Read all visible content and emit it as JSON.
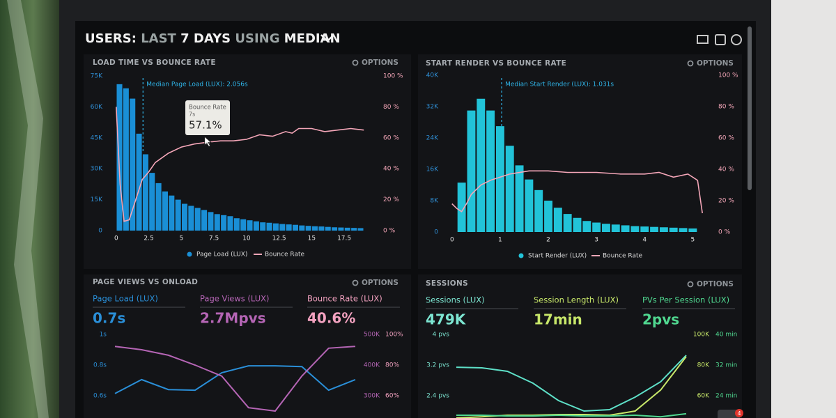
{
  "header": {
    "title_parts": [
      "USERS:",
      "LAST",
      "7 DAYS",
      "USING",
      "MEDIAN"
    ]
  },
  "badge": "4",
  "panels": [
    {
      "title": "LOAD TIME VS BOUNCE RATE",
      "options": "OPTIONS",
      "chart": {
        "type": "histogram",
        "xlim": [
          -0.9,
          19.9
        ],
        "xticks": [
          0,
          2.5,
          5,
          7.5,
          10,
          12.5,
          15,
          17.5
        ],
        "ylim": [
          0,
          75000
        ],
        "yticks": [
          0,
          {
            "value": 15000,
            "label": "15K"
          },
          {
            "value": 30000,
            "label": "30K"
          },
          {
            "value": 45000,
            "label": "45K"
          },
          {
            "value": 60000,
            "label": "60K"
          },
          {
            "value": 75000,
            "label": "75K"
          }
        ],
        "y2lim": [
          0,
          100
        ],
        "y2ticks": [
          {
            "value": 0,
            "label": "0 %"
          },
          {
            "value": 20,
            "label": "20 %"
          },
          {
            "value": 40,
            "label": "40 %"
          },
          {
            "value": 60,
            "label": "60 %"
          },
          {
            "value": 80,
            "label": "80 %"
          },
          {
            "value": 100,
            "label": "100 %"
          }
        ],
        "series": [
          {
            "name": "Page Load (LUX)",
            "type": "bar",
            "color": "#1a8fd6",
            "x": [
              0.25,
              0.75,
              1.25,
              1.75,
              2.25,
              2.75,
              3.25,
              3.75,
              4.25,
              4.75,
              5.25,
              5.75,
              6.25,
              6.75,
              7.25,
              7.75,
              8.25,
              8.75,
              9.25,
              9.75,
              10.25,
              10.75,
              11.25,
              11.75,
              12.25,
              12.75,
              13.25,
              13.75,
              14.25,
              14.75,
              15.25,
              15.75,
              16.25,
              16.75,
              17.25,
              17.75,
              18.25,
              18.75
            ],
            "values": [
              71000,
              69000,
              64000,
              47000,
              37000,
              28000,
              23000,
              19000,
              17000,
              15000,
              13000,
              12000,
              11000,
              10000,
              9000,
              8000,
              7500,
              7000,
              6000,
              5500,
              5000,
              4500,
              4000,
              3800,
              3500,
              3200,
              3000,
              2800,
              2500,
              2300,
              2100,
              2000,
              1800,
              1600,
              1500,
              1400,
              1300,
              1200
            ]
          },
          {
            "name": "Bounce Rate",
            "type": "line",
            "axis": "y2",
            "color": "#f4a6b8",
            "x": [
              0,
              0.3,
              0.6,
              1,
              1.5,
              2,
              2.5,
              3,
              4,
              5,
              6,
              7,
              8,
              9,
              10,
              11,
              12,
              13,
              13.5,
              14,
              15,
              16,
              17,
              18,
              19
            ],
            "values": [
              80,
              30,
              6,
              7,
              20,
              33,
              38,
              44,
              50,
              54,
              56,
              57.1,
              58,
              58,
              59,
              62,
              61,
              64,
              63,
              66,
              66,
              64,
              65,
              66,
              65
            ]
          }
        ],
        "median": {
          "value": 2.056,
          "label": "Median Page Load (LUX): 2.056s"
        },
        "tooltip": {
          "title": "Bounce Rate",
          "subtitle": "7s",
          "x": 7,
          "value": 57.1,
          "value_label": "57.1%"
        }
      }
    },
    {
      "title": "START RENDER VS BOUNCE RATE",
      "options": "OPTIONS",
      "chart": {
        "type": "histogram",
        "xlim": [
          -0.2,
          5.4
        ],
        "xticks": [
          0,
          1,
          2,
          3,
          4,
          5
        ],
        "ylim": [
          0,
          40000
        ],
        "yticks": [
          0,
          {
            "value": 8000,
            "label": "8K"
          },
          {
            "value": 16000,
            "label": "16K"
          },
          {
            "value": 24000,
            "label": "24K"
          },
          {
            "value": 32000,
            "label": "32K"
          },
          {
            "value": 40000,
            "label": "40K"
          }
        ],
        "y2lim": [
          0,
          100
        ],
        "y2ticks": [
          {
            "value": 0,
            "label": "0 %"
          },
          {
            "value": 20,
            "label": "20 %"
          },
          {
            "value": 40,
            "label": "40 %"
          },
          {
            "value": 60,
            "label": "60 %"
          },
          {
            "value": 80,
            "label": "80 %"
          },
          {
            "value": 100,
            "label": "100 %"
          }
        ],
        "series": [
          {
            "name": "Start Render (LUX)",
            "type": "bar",
            "color": "#22c3d8",
            "x": [
              0.2,
              0.4,
              0.6,
              0.8,
              1,
              1.2,
              1.4,
              1.6,
              1.8,
              2,
              2.2,
              2.4,
              2.6,
              2.8,
              3,
              3.2,
              3.4,
              3.6,
              3.8,
              4,
              4.2,
              4.4,
              4.6,
              4.8,
              5
            ],
            "values": [
              12600,
              31000,
              34000,
              31000,
              27000,
              22000,
              17000,
              13400,
              10700,
              8000,
              6200,
              4600,
              3600,
              2800,
              2400,
              2100,
              1900,
              1700,
              1500,
              1400,
              1300,
              1200,
              1100,
              1000,
              900
            ]
          },
          {
            "name": "Bounce Rate",
            "type": "line",
            "axis": "y2",
            "color": "#f4a6b8",
            "x": [
              0,
              0.1,
              0.2,
              0.3,
              0.4,
              0.6,
              0.8,
              1,
              1.2,
              1.6,
              2,
              2.4,
              3,
              3.5,
              4,
              4.3,
              4.6,
              4.9,
              5.1,
              5.2
            ],
            "values": [
              18,
              15,
              13,
              18,
              24,
              30,
              33,
              35,
              37,
              39,
              39,
              38,
              38,
              37,
              37,
              38,
              35,
              37,
              33,
              12
            ]
          }
        ],
        "median": {
          "value": 1.031,
          "label": "Median Start Render (LUX): 1.031s"
        }
      }
    },
    {
      "title": "PAGE VIEWS VS ONLOAD",
      "options": "OPTIONS",
      "kpis": [
        {
          "label": "Page Load (LUX)",
          "value": "0.7s",
          "color": "#2a8fd8"
        },
        {
          "label": "Page Views (LUX)",
          "value": "2.7Mpvs",
          "color": "#b565b5"
        },
        {
          "label": "Bounce Rate (LUX)",
          "value": "40.6%",
          "color": "#f3a2c0"
        }
      ],
      "chart": {
        "type": "line",
        "ylim": [
          0.5,
          1
        ],
        "yticks": [
          {
            "value": 1,
            "label": "1s"
          },
          {
            "value": 0.8,
            "label": "0.8s"
          },
          {
            "value": 0.6,
            "label": "0.6s"
          }
        ],
        "y2lim": [
          250000,
          500000
        ],
        "y2ticks": [
          {
            "value": 500000,
            "label": "500K"
          },
          {
            "value": 400000,
            "label": "400K"
          },
          {
            "value": 300000,
            "label": "300K"
          }
        ],
        "y3lim": [
          50,
          100
        ],
        "y3ticks": [
          {
            "value": 100,
            "label": "100%"
          },
          {
            "value": 80,
            "label": "80%"
          },
          {
            "value": 60,
            "label": "60%"
          }
        ],
        "series": [
          {
            "axis": "y",
            "color": "#2a8fd8",
            "values": [
              0.614,
              0.705,
              0.64,
              0.636,
              0.75,
              0.795,
              0.795,
              0.79,
              0.636,
              0.705
            ]
          },
          {
            "axis": "y2",
            "color": "#b565b5",
            "values": [
              461000,
              450000,
              432000,
              400000,
              364000,
              261000,
              250000,
              364000,
              455000,
              461000
            ]
          }
        ]
      }
    },
    {
      "title": "SESSIONS",
      "options": "OPTIONS",
      "kpis": [
        {
          "label": "Sessions (LUX)",
          "value": "479K",
          "color": "#7de6d2"
        },
        {
          "label": "Session Length (LUX)",
          "value": "17min",
          "color": "#c8e86a"
        },
        {
          "label": "PVs Per Session (LUX)",
          "value": "2pvs",
          "color": "#50d890"
        }
      ],
      "chart": {
        "type": "line",
        "ylim": [
          2,
          4
        ],
        "yticks": [
          {
            "value": 4,
            "label": "4 pvs"
          },
          {
            "value": 3.2,
            "label": "3.2 pvs"
          },
          {
            "value": 2.4,
            "label": "2.4 pvs"
          }
        ],
        "y2lim": [
          50000,
          100000
        ],
        "y2ticks": [
          {
            "value": 100000,
            "label": "100K"
          },
          {
            "value": 80000,
            "label": "80K"
          },
          {
            "value": 60000,
            "label": "60K"
          }
        ],
        "y3lim": [
          20,
          40
        ],
        "y3ticks": [
          {
            "value": 40,
            "label": "40 min"
          },
          {
            "value": 32,
            "label": "32 min"
          },
          {
            "value": 24,
            "label": "24 min"
          }
        ],
        "series": [
          {
            "axis": "y2",
            "color": "#5ee0c8",
            "values": [
              78600,
              78200,
              75900,
              68200,
              56800,
              50000,
              50900,
              59100,
              69100,
              86400
            ]
          },
          {
            "axis": "y3",
            "color": "#c8e86a",
            "values": [
              18.2,
              18.5,
              18.9,
              18.9,
              19.1,
              19.1,
              18.9,
              20,
              25.5,
              34.2
            ]
          },
          {
            "axis": "y",
            "color": "#50d890",
            "values": [
              1.89,
              1.89,
              1.87,
              1.87,
              1.89,
              1.87,
              1.87,
              1.89,
              1.85,
              1.93
            ]
          }
        ]
      }
    }
  ]
}
